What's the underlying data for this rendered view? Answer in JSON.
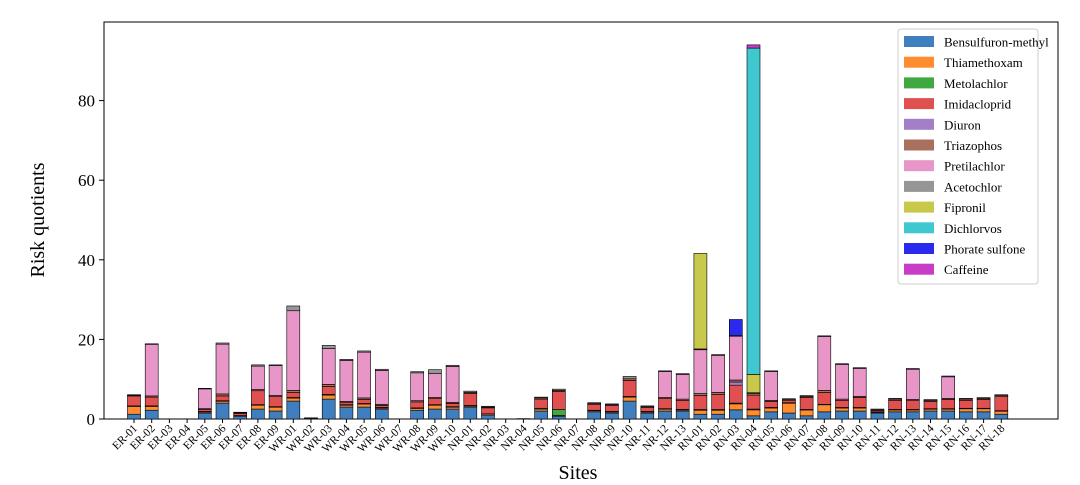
{
  "chart_data": {
    "type": "bar",
    "stacked": true,
    "title": "",
    "xlabel": "Sites",
    "ylabel": "Risk quotients",
    "ylim": [
      0,
      100
    ],
    "yticks": [
      0,
      20,
      40,
      60,
      80
    ],
    "legend_position": "top-right",
    "categories": [
      "ER-01",
      "ER-02",
      "ER-03",
      "ER-04",
      "ER-05",
      "ER-06",
      "ER-07",
      "ER-08",
      "ER-09",
      "WR-01",
      "WR-02",
      "WR-03",
      "WR-04",
      "WR-05",
      "WR-06",
      "WR-07",
      "WR-08",
      "WR-09",
      "WR-10",
      "NR-01",
      "NR-02",
      "NR-03",
      "NR-04",
      "NR-05",
      "NR-06",
      "NR-07",
      "NR-08",
      "NR-09",
      "NR-10",
      "NR-11",
      "NR-12",
      "NR-13",
      "RN-01",
      "RN-02",
      "RN-03",
      "RN-04",
      "RN-05",
      "RN-06",
      "RN-07",
      "RN-08",
      "RN-09",
      "RN-10",
      "RN-11",
      "RN-12",
      "RN-13",
      "RN-14",
      "RN-15",
      "RN-16",
      "RN-17",
      "RN-18"
    ],
    "series": [
      {
        "name": "Bensulfuron-methyl",
        "color": "#3f7fbf",
        "values": [
          1.2,
          2.2,
          0,
          0,
          1.5,
          4.0,
          0.7,
          2.5,
          2.0,
          4.5,
          0.2,
          5.0,
          3.0,
          3.0,
          2.5,
          0,
          2.2,
          2.5,
          2.5,
          3.0,
          1.0,
          0,
          0.1,
          2.0,
          0.7,
          0,
          1.8,
          1.5,
          4.5,
          1.5,
          2.0,
          2.0,
          1.2,
          1.2,
          2.3,
          0.8,
          1.8,
          1.5,
          0.8,
          1.8,
          2.0,
          2.0,
          1.5,
          1.8,
          1.8,
          2.0,
          2.0,
          1.8,
          1.8,
          1.2
        ]
      },
      {
        "name": "Thiamethoxam",
        "color": "#ff8c2e",
        "values": [
          2.0,
          1.0,
          0,
          0,
          0.3,
          0.5,
          0.2,
          1.0,
          1.0,
          0.8,
          0,
          1.0,
          0.5,
          0.8,
          0.3,
          0,
          0.5,
          1.0,
          0.5,
          0.3,
          0.3,
          0,
          0,
          0.5,
          0.2,
          0,
          0.3,
          0.3,
          1.0,
          0.3,
          0.5,
          0.3,
          1.0,
          1.0,
          1.5,
          1.5,
          1.0,
          2.5,
          1.5,
          1.8,
          0.8,
          0.8,
          0.2,
          0.5,
          0.5,
          0.5,
          0.5,
          0.8,
          0.8,
          0.8
        ]
      },
      {
        "name": "Metolachlor",
        "color": "#40a840",
        "values": [
          0.1,
          0.1,
          0,
          0,
          0.1,
          0.1,
          0,
          0.1,
          0.1,
          0.1,
          0,
          0.2,
          0.1,
          0.1,
          0.1,
          0,
          0.1,
          0.1,
          0.1,
          0.1,
          0,
          0,
          0,
          0.2,
          1.5,
          0,
          0.1,
          0.1,
          0.2,
          0.1,
          0.1,
          0.1,
          0.2,
          0.2,
          0.2,
          0.2,
          0.1,
          0.1,
          0.1,
          0.1,
          0.1,
          0.1,
          0.1,
          0.1,
          0.1,
          0.1,
          0.1,
          0.1,
          0.1,
          0.1
        ]
      },
      {
        "name": "Imidacloprid",
        "color": "#e05050",
        "values": [
          2.5,
          2.2,
          0,
          0,
          0.5,
          1.2,
          0.5,
          3.5,
          2.5,
          1.3,
          0,
          2.0,
          0.5,
          1.0,
          0.5,
          0,
          1.5,
          1.5,
          0.8,
          3.0,
          1.5,
          0,
          0,
          2.3,
          4.5,
          0,
          1.5,
          1.5,
          4.0,
          1.0,
          2.5,
          2.3,
          3.5,
          3.8,
          4.5,
          3.5,
          1.5,
          0.5,
          3.0,
          3.0,
          1.8,
          2.5,
          0.4,
          2.3,
          2.2,
          1.8,
          2.3,
          2.0,
          2.2,
          3.5
        ]
      },
      {
        "name": "Diuron",
        "color": "#a37fc8",
        "values": [
          0,
          0,
          0,
          0,
          0,
          0,
          0,
          0,
          0,
          0,
          0,
          0,
          0,
          0,
          0,
          0,
          0,
          0,
          0,
          0,
          0,
          0,
          0,
          0,
          0,
          0,
          0,
          0,
          0,
          0,
          0,
          0,
          0,
          0,
          0.8,
          0,
          0,
          0,
          0,
          0,
          0,
          0,
          0,
          0,
          0,
          0,
          0,
          0,
          0,
          0
        ]
      },
      {
        "name": "Triazophos",
        "color": "#a97060",
        "values": [
          0.2,
          0.3,
          0,
          0,
          0.2,
          0.5,
          0.2,
          0.3,
          0.3,
          0.5,
          0,
          0.5,
          0.3,
          0.4,
          0.3,
          0,
          0.3,
          0.3,
          0.3,
          0.3,
          0.2,
          0,
          0,
          0.3,
          0.3,
          0,
          0.2,
          0.2,
          0.4,
          0.2,
          0.3,
          0.3,
          0.5,
          0.5,
          0.5,
          0.4,
          0.3,
          0.3,
          0.3,
          0.5,
          0.3,
          0.3,
          0.1,
          0.3,
          0.3,
          0.3,
          0.3,
          0.3,
          0.3,
          0.3
        ]
      },
      {
        "name": "Pretilachlor",
        "color": "#e895c8",
        "values": [
          0,
          13.0,
          0,
          0,
          5.0,
          12.5,
          0,
          5.9,
          7.5,
          20.0,
          0,
          9.0,
          10.3,
          11.5,
          8.5,
          0,
          7.0,
          6.0,
          9.0,
          0,
          0,
          0,
          0,
          0,
          0,
          0,
          0,
          0,
          0,
          0,
          6.5,
          6.2,
          11.0,
          9.3,
          11.0,
          0,
          7.2,
          0,
          0,
          13.5,
          8.7,
          7.0,
          0,
          0,
          7.6,
          0,
          5.4,
          0,
          0,
          0
        ]
      },
      {
        "name": "Acetochlor",
        "color": "#969696",
        "values": [
          0.1,
          0.1,
          0,
          0,
          0.1,
          0.3,
          0.1,
          0.3,
          0.2,
          1.2,
          0.1,
          0.8,
          0.3,
          0.3,
          0.3,
          0,
          0.3,
          1.0,
          0.3,
          0.3,
          0.2,
          0,
          0,
          0.2,
          0.3,
          0,
          0.2,
          0.2,
          0.6,
          0.2,
          0.2,
          0.2,
          0.2,
          0.2,
          0.2,
          0.2,
          0.2,
          0.2,
          0.2,
          0.2,
          0.2,
          0.2,
          0.2,
          0.2,
          0.2,
          0.2,
          0.2,
          0.2,
          0.2,
          0.2
        ]
      },
      {
        "name": "Fipronil",
        "color": "#c8c84a",
        "values": [
          0,
          0,
          0,
          0,
          0,
          0,
          0,
          0,
          0,
          0,
          0,
          0,
          0,
          0,
          0,
          0,
          0,
          0,
          0,
          0,
          0,
          0,
          0,
          0,
          0,
          0,
          0,
          0,
          0,
          0,
          0,
          0,
          24.0,
          0,
          0,
          4.6,
          0,
          0,
          0,
          0,
          0,
          0,
          0,
          0,
          0,
          0,
          0,
          0,
          0,
          0
        ]
      },
      {
        "name": "Dichlorvos",
        "color": "#40c8d0",
        "values": [
          0,
          0,
          0,
          0,
          0,
          0,
          0,
          0,
          0,
          0,
          0,
          0,
          0,
          0,
          0,
          0,
          0,
          0,
          0,
          0,
          0,
          0,
          0,
          0,
          0,
          0,
          0,
          0,
          0,
          0,
          0,
          0,
          0,
          0,
          0,
          82.0,
          0,
          0,
          0,
          0,
          0,
          0,
          0,
          0,
          0,
          0,
          0,
          0,
          0,
          0
        ]
      },
      {
        "name": "Phorate sulfone",
        "color": "#2a2aee",
        "values": [
          0,
          0,
          0,
          0,
          0,
          0,
          0,
          0,
          0,
          0,
          0,
          0,
          0,
          0,
          0,
          0,
          0,
          0,
          0,
          0,
          0,
          0,
          0,
          0,
          0,
          0,
          0,
          0,
          0,
          0,
          0,
          0,
          0,
          0,
          4.0,
          0,
          0,
          0,
          0,
          0,
          0,
          0,
          0,
          0,
          0,
          0,
          0,
          0,
          0,
          0
        ]
      },
      {
        "name": "Caffeine",
        "color": "#c83cc8",
        "values": [
          0,
          0,
          0,
          0,
          0,
          0,
          0,
          0,
          0,
          0,
          0,
          0,
          0,
          0,
          0,
          0,
          0,
          0,
          0,
          0,
          0,
          0,
          0,
          0,
          0,
          0,
          0,
          0,
          0,
          0,
          0,
          0,
          0,
          0,
          0,
          0.8,
          0,
          0,
          0,
          0,
          0,
          0,
          0,
          0,
          0,
          0,
          0,
          0,
          0,
          0
        ]
      }
    ]
  }
}
